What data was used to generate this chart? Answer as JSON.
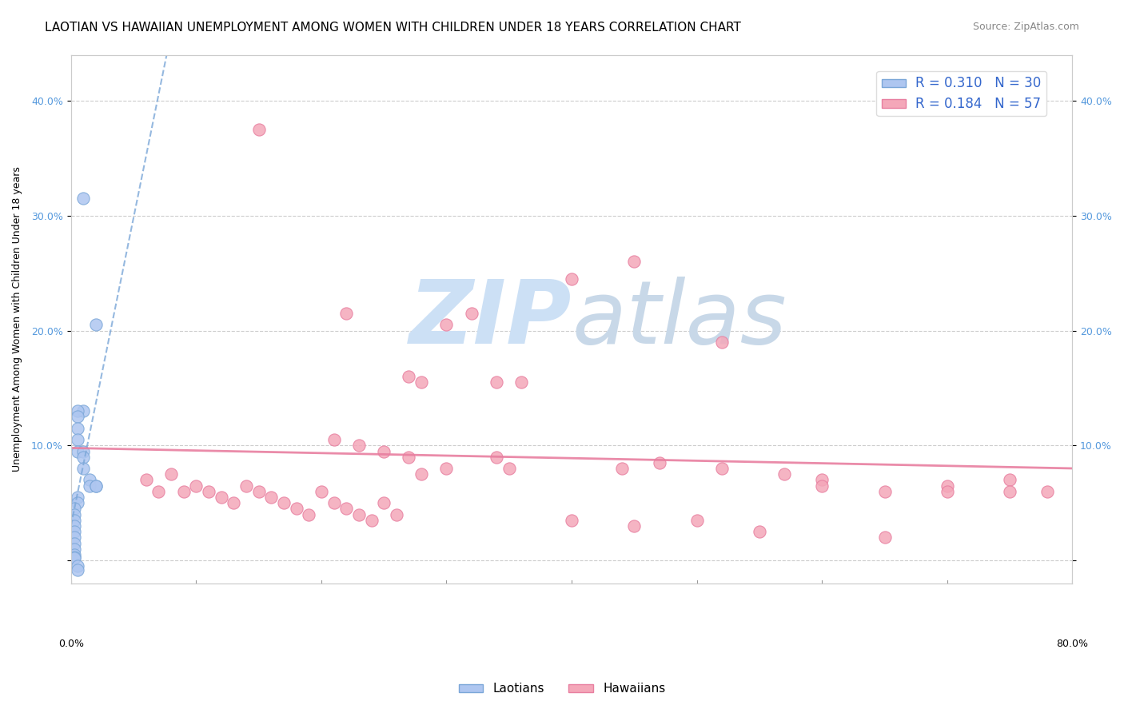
{
  "title": "LAOTIAN VS HAWAIIAN UNEMPLOYMENT AMONG WOMEN WITH CHILDREN UNDER 18 YEARS CORRELATION CHART",
  "source": "Source: ZipAtlas.com",
  "ylabel": "Unemployment Among Women with Children Under 18 years",
  "xlim": [
    0.0,
    0.8
  ],
  "ylim": [
    -0.02,
    0.44
  ],
  "yticks": [
    0.0,
    0.1,
    0.2,
    0.3,
    0.4
  ],
  "ytick_labels": [
    "",
    "10.0%",
    "20.0%",
    "30.0%",
    "40.0%"
  ],
  "right_ytick_labels": [
    "",
    "10.0%",
    "20.0%",
    "30.0%",
    "40.0%"
  ],
  "laotian_color": "#aec6f0",
  "hawaiian_color": "#f4a7b9",
  "trend_laotian_color": "#7ba7d8",
  "trend_hawaiian_color": "#e87fa0",
  "watermark_zip_color": "#cce0f5",
  "watermark_atlas_color": "#c8d8e8",
  "background_color": "#ffffff",
  "laotian_points_x": [
    0.01,
    0.02,
    0.01,
    0.005,
    0.005,
    0.005,
    0.005,
    0.005,
    0.01,
    0.01,
    0.01,
    0.015,
    0.015,
    0.02,
    0.02,
    0.005,
    0.005,
    0.003,
    0.003,
    0.003,
    0.003,
    0.003,
    0.003,
    0.003,
    0.003,
    0.003,
    0.003,
    0.003,
    0.005,
    0.005
  ],
  "laotian_points_y": [
    0.315,
    0.205,
    0.13,
    0.13,
    0.125,
    0.115,
    0.105,
    0.095,
    0.095,
    0.09,
    0.08,
    0.07,
    0.065,
    0.065,
    0.065,
    0.055,
    0.05,
    0.045,
    0.04,
    0.035,
    0.03,
    0.025,
    0.02,
    0.015,
    0.01,
    0.005,
    0.003,
    0.002,
    -0.005,
    -0.008
  ],
  "hawaiian_points_x": [
    0.15,
    0.22,
    0.4,
    0.45,
    0.52,
    0.32,
    0.3,
    0.27,
    0.28,
    0.34,
    0.36,
    0.21,
    0.23,
    0.25,
    0.27,
    0.34,
    0.44,
    0.47,
    0.52,
    0.57,
    0.6,
    0.65,
    0.7,
    0.75,
    0.78,
    0.06,
    0.07,
    0.08,
    0.09,
    0.1,
    0.11,
    0.12,
    0.13,
    0.14,
    0.15,
    0.16,
    0.17,
    0.18,
    0.19,
    0.2,
    0.21,
    0.22,
    0.23,
    0.24,
    0.25,
    0.26,
    0.28,
    0.3,
    0.35,
    0.4,
    0.45,
    0.5,
    0.55,
    0.6,
    0.65,
    0.7,
    0.75
  ],
  "hawaiian_points_y": [
    0.375,
    0.215,
    0.245,
    0.26,
    0.19,
    0.215,
    0.205,
    0.16,
    0.155,
    0.155,
    0.155,
    0.105,
    0.1,
    0.095,
    0.09,
    0.09,
    0.08,
    0.085,
    0.08,
    0.075,
    0.07,
    0.06,
    0.065,
    0.07,
    0.06,
    0.07,
    0.06,
    0.075,
    0.06,
    0.065,
    0.06,
    0.055,
    0.05,
    0.065,
    0.06,
    0.055,
    0.05,
    0.045,
    0.04,
    0.06,
    0.05,
    0.045,
    0.04,
    0.035,
    0.05,
    0.04,
    0.075,
    0.08,
    0.08,
    0.035,
    0.03,
    0.035,
    0.025,
    0.065,
    0.02,
    0.06,
    0.06
  ],
  "title_fontsize": 11,
  "axis_label_fontsize": 9,
  "tick_fontsize": 9,
  "legend_fontsize": 11
}
